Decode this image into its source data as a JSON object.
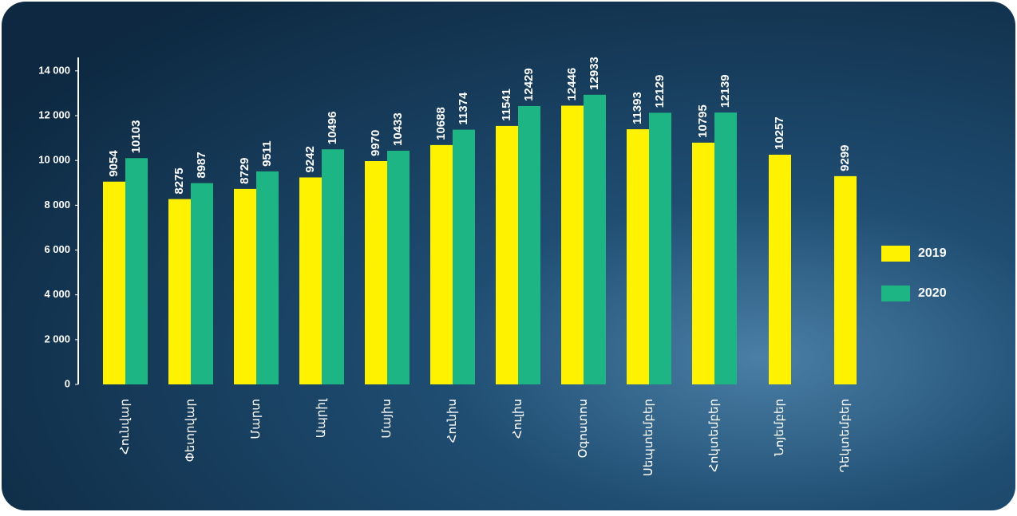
{
  "chart_data": {
    "type": "bar",
    "categories": [
      "Հունվար",
      "Փետրվար",
      "Մարտ",
      "Ապրիլ",
      "Մայիս",
      "Հունիս",
      "Հուլիս",
      "Օգոստոս",
      "Սեպտեմբեր",
      "Հոկտեմբեր",
      "Նոյեմբեր",
      "Դեկտեմբեր"
    ],
    "series": [
      {
        "name": "2019",
        "color": "#fff200",
        "values": [
          9054,
          8275,
          8729,
          9242,
          9970,
          10688,
          11541,
          12446,
          11393,
          10795,
          10257,
          9299
        ]
      },
      {
        "name": "2020",
        "color": "#1db584",
        "values": [
          10103,
          8987,
          9511,
          10496,
          10433,
          11374,
          12429,
          12933,
          12129,
          12139,
          null,
          null
        ]
      }
    ],
    "ylim": [
      0,
      14600
    ],
    "yticks": [
      0,
      {
        "value": 2000,
        "label": "2 000"
      },
      {
        "value": 4000,
        "label": "4 000"
      },
      {
        "value": 6000,
        "label": "6 000"
      },
      {
        "value": 8000,
        "label": "8 000"
      },
      {
        "value": 10000,
        "label": "10 000"
      },
      {
        "value": 12000,
        "label": "12 000"
      },
      {
        "value": 14000,
        "label": "14 000"
      }
    ],
    "legend": "right"
  }
}
